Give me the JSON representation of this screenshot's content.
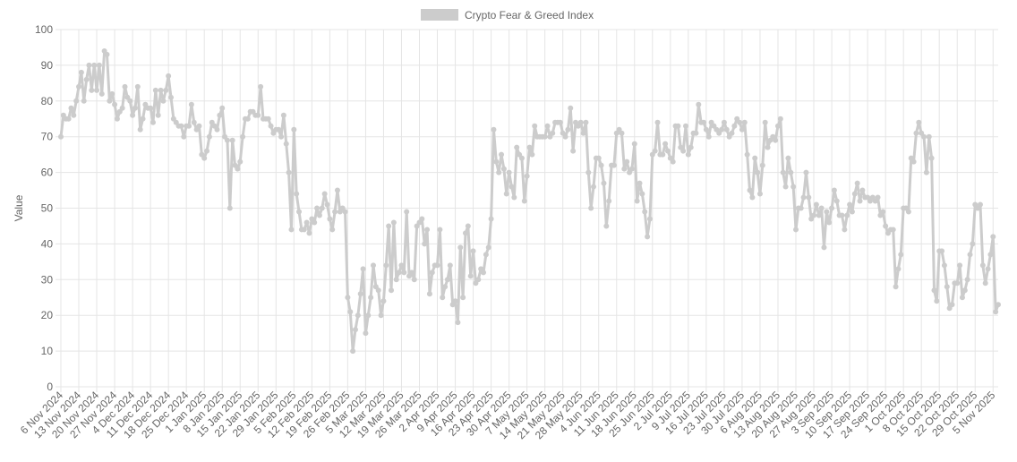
{
  "chart_data": {
    "type": "line",
    "series": [
      {
        "name": "Crypto Fear & Greed Index",
        "color": "#cccccc",
        "values": [
          70,
          76,
          75,
          75,
          78,
          76,
          80,
          84,
          88,
          80,
          86,
          90,
          83,
          90,
          83,
          90,
          82,
          94,
          93,
          80,
          82,
          79,
          75,
          77,
          78,
          84,
          81,
          80,
          76,
          78,
          84,
          72,
          75,
          79,
          78,
          78,
          74,
          83,
          76,
          83,
          80,
          83,
          87,
          81,
          75,
          74,
          73,
          73,
          70,
          73,
          73,
          79,
          74,
          72,
          73,
          65,
          64,
          66,
          70,
          74,
          73,
          72,
          76,
          78,
          70,
          69,
          50,
          69,
          62,
          61,
          63,
          70,
          75,
          75,
          77,
          77,
          76,
          76,
          84,
          75,
          75,
          75,
          73,
          71,
          72,
          72,
          70,
          76,
          68,
          60,
          44,
          72,
          54,
          49,
          44,
          44,
          46,
          43,
          47,
          46,
          50,
          48,
          50,
          54,
          51,
          47,
          44,
          49,
          55,
          49,
          50,
          49,
          25,
          21,
          10,
          16,
          20,
          26,
          33,
          15,
          20,
          25,
          34,
          28,
          27,
          20,
          24,
          34,
          45,
          27,
          46,
          30,
          32,
          34,
          32,
          49,
          31,
          32,
          30,
          45,
          46,
          47,
          40,
          44,
          26,
          32,
          34,
          34,
          44,
          25,
          28,
          30,
          34,
          23,
          24,
          18,
          39,
          25,
          43,
          45,
          31,
          38,
          29,
          30,
          33,
          32,
          37,
          39,
          47,
          72,
          63,
          60,
          65,
          61,
          54,
          60,
          56,
          53,
          67,
          65,
          64,
          52,
          59,
          67,
          65,
          73,
          70,
          70,
          70,
          70,
          73,
          70,
          71,
          74,
          74,
          74,
          71,
          70,
          72,
          78,
          66,
          74,
          73,
          74,
          71,
          74,
          60,
          50,
          56,
          64,
          64,
          62,
          57,
          45,
          52,
          62,
          62,
          71,
          72,
          71,
          61,
          63,
          60,
          61,
          68,
          52,
          57,
          54,
          49,
          42,
          47,
          65,
          66,
          74,
          65,
          65,
          68,
          66,
          64,
          63,
          73,
          73,
          67,
          66,
          73,
          65,
          67,
          71,
          71,
          79,
          74,
          74,
          72,
          70,
          74,
          73,
          72,
          71,
          72,
          74,
          72,
          70,
          71,
          73,
          75,
          74,
          72,
          74,
          65,
          55,
          53,
          64,
          60,
          54,
          62,
          74,
          67,
          69,
          70,
          69,
          73,
          75,
          60,
          56,
          64,
          60,
          56,
          44,
          50,
          50,
          53,
          60,
          53,
          47,
          48,
          51,
          48,
          50,
          39,
          49,
          46,
          50,
          55,
          52,
          48,
          48,
          44,
          48,
          51,
          49,
          54,
          57,
          52,
          55,
          53,
          53,
          52,
          53,
          52,
          53,
          48,
          49,
          45,
          43,
          44,
          44,
          28,
          33,
          37,
          50,
          50,
          49,
          64,
          63,
          71,
          74,
          71,
          70,
          60,
          70,
          64,
          27,
          24,
          38,
          38,
          34,
          28,
          22,
          23,
          29,
          29,
          34,
          25,
          27,
          30,
          37,
          40,
          51,
          50,
          51,
          34,
          29,
          33,
          37,
          42,
          21,
          23
        ]
      }
    ],
    "categories": [
      "6 Nov 2024",
      null,
      null,
      null,
      null,
      null,
      null,
      "13 Nov 2024",
      null,
      null,
      null,
      null,
      null,
      null,
      "20 Nov 2024",
      null,
      null,
      null,
      null,
      null,
      null,
      "27 Nov 2024",
      null,
      null,
      null,
      null,
      null,
      null,
      "4 Dec 2024",
      null,
      null,
      null,
      null,
      null,
      null,
      "11 Dec 2024",
      null,
      null,
      null,
      null,
      null,
      null,
      "18 Dec 2024",
      null,
      null,
      null,
      null,
      null,
      null,
      "25 Dec 2024",
      null,
      null,
      null,
      null,
      null,
      null,
      "1 Jan 2025",
      null,
      null,
      null,
      null,
      null,
      null,
      "8 Jan 2025",
      null,
      null,
      null,
      null,
      null,
      null,
      "15 Jan 2025",
      null,
      null,
      null,
      null,
      null,
      null,
      "22 Jan 2025",
      null,
      null,
      null,
      null,
      null,
      null,
      "29 Jan 2025",
      null,
      null,
      null,
      null,
      null,
      null,
      "5 Feb 2025",
      null,
      null,
      null,
      null,
      null,
      null,
      "12 Feb 2025",
      null,
      null,
      null,
      null,
      null,
      null,
      "19 Feb 2025",
      null,
      null,
      null,
      null,
      null,
      null,
      "26 Feb 2025",
      null,
      null,
      null,
      null,
      null,
      null,
      "5 Mar 2025",
      null,
      null,
      null,
      null,
      null,
      null,
      "12 Mar 2025",
      null,
      null,
      null,
      null,
      null,
      null,
      "19 Mar 2025",
      null,
      null,
      null,
      null,
      null,
      null,
      "26 Mar 2025",
      null,
      null,
      null,
      null,
      null,
      null,
      "2 Apr 2025",
      null,
      null,
      null,
      null,
      null,
      null,
      "9 Apr 2025",
      null,
      null,
      null,
      null,
      null,
      null,
      "16 Apr 2025",
      null,
      null,
      null,
      null,
      null,
      null,
      "23 Apr 2025",
      null,
      null,
      null,
      null,
      null,
      null,
      "30 Apr 2025",
      null,
      null,
      null,
      null,
      null,
      null,
      "7 May 2025",
      null,
      null,
      null,
      null,
      null,
      null,
      "14 May 2025",
      null,
      null,
      null,
      null,
      null,
      null,
      "21 May 2025",
      null,
      null,
      null,
      null,
      null,
      null,
      "28 May 2025",
      null,
      null,
      null,
      null,
      null,
      null,
      "4 Jun 2025",
      null,
      null,
      null,
      null,
      null,
      null,
      "11 Jun 2025",
      null,
      null,
      null,
      null,
      null,
      null,
      "18 Jun 2025",
      null,
      null,
      null,
      null,
      null,
      null,
      "25 Jun 2025",
      null,
      null,
      null,
      null,
      null,
      null,
      "2 Jul 2025",
      null,
      null,
      null,
      null,
      null,
      null,
      "9 Jul 2025",
      null,
      null,
      null,
      null,
      null,
      null,
      "16 Jul 2025",
      null,
      null,
      null,
      null,
      null,
      null,
      "23 Jul 2025",
      null,
      null,
      null,
      null,
      null,
      null,
      "30 Jul 2025",
      null,
      null,
      null,
      null,
      null,
      null,
      "6 Aug 2025",
      null,
      null,
      null,
      null,
      null,
      null,
      "13 Aug 2025",
      null,
      null,
      null,
      null,
      null,
      null,
      "20 Aug 2025",
      null,
      null,
      null,
      null,
      null,
      null,
      "27 Aug 2025",
      null,
      null,
      null,
      null,
      null,
      null,
      "3 Sep 2025",
      null,
      null,
      null,
      null,
      null,
      null,
      "10 Sep 2025",
      null,
      null,
      null,
      null,
      null,
      null,
      "17 Sep 2025",
      null,
      null,
      null,
      null,
      null,
      null,
      "24 Sep 2025",
      null,
      null,
      null,
      null,
      null,
      null,
      "1 Oct 2025",
      null,
      null,
      null,
      null,
      null,
      null,
      "8 Oct 2025",
      null,
      null,
      null,
      null,
      null,
      null,
      "15 Oct 2025",
      null,
      null,
      null,
      null,
      null,
      null,
      "22 Oct 2025",
      null,
      null,
      null,
      null,
      null,
      null,
      "29 Oct 2025",
      null,
      null,
      null,
      null,
      null,
      null,
      "5 Nov 2025",
      null,
      null
    ],
    "y_label": "Value",
    "ylim": [
      0,
      100
    ],
    "yticks": [
      0,
      10,
      20,
      30,
      40,
      50,
      60,
      70,
      80,
      90,
      100
    ],
    "grid": true,
    "legend": "top"
  }
}
